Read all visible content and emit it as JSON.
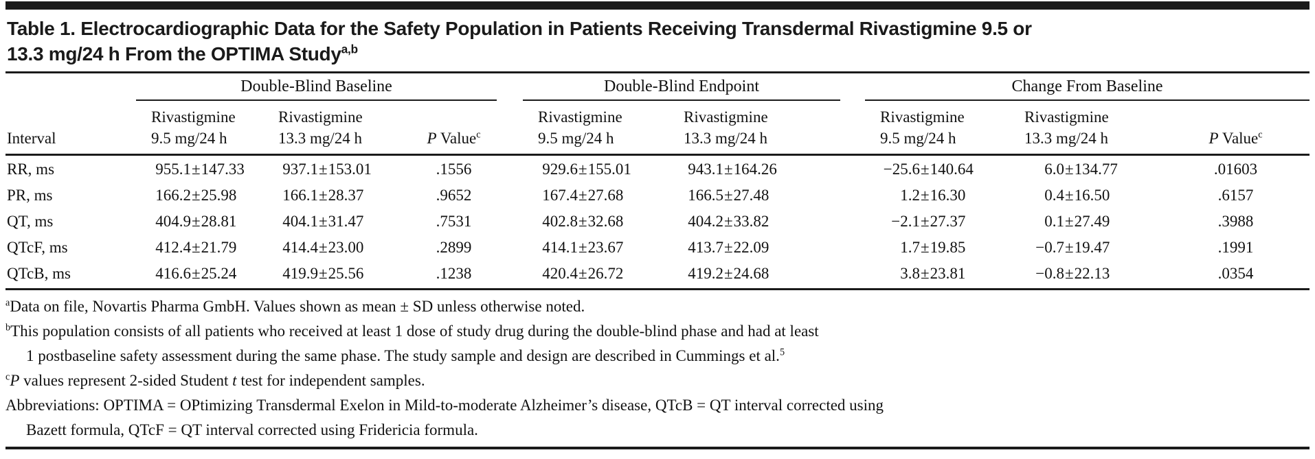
{
  "title": {
    "line1": "Table 1. Electrocardiographic Data for the Safety Population in Patients Receiving Transdermal Rivastigmine 9.5 or",
    "line2": "13.3 mg/24 h From the OPTIMA Study",
    "superscript": "a,b"
  },
  "table": {
    "interval_header": "Interval",
    "groups": {
      "baseline": {
        "label": "Double-Blind Baseline"
      },
      "endpoint": {
        "label": "Double-Blind Endpoint"
      },
      "change": {
        "label": "Change From Baseline"
      }
    },
    "col_headers": {
      "riva_line1": "Rivastigmine",
      "dose_9_5": "9.5 mg/24 h",
      "dose_13_3": "13.3 mg/24 h",
      "p_italic": "P",
      "p_rest": " Value",
      "p_superscript": "c"
    },
    "rows": [
      {
        "interval": "RR, ms",
        "values": [
          "955.1±147.33",
          "937.1±153.01",
          ".1556",
          "929.6±155.01",
          "943.1±164.26",
          "−25.6±140.64",
          "6.0±134.77",
          ".01603"
        ]
      },
      {
        "interval": "PR, ms",
        "values": [
          "166.2±25.98",
          "166.1±28.37",
          ".9652",
          "167.4±27.68",
          "166.5±27.48",
          "1.2±16.30",
          "0.4±16.50",
          ".6157"
        ]
      },
      {
        "interval": "QT, ms",
        "values": [
          "404.9±28.81",
          "404.1±31.47",
          ".7531",
          "402.8±32.68",
          "404.2±33.82",
          "−2.1±27.37",
          "0.1±27.49",
          ".3988"
        ]
      },
      {
        "interval": "QTcF, ms",
        "values": [
          "412.4±21.79",
          "414.4±23.00",
          ".2899",
          "414.1±23.67",
          "413.7±22.09",
          "1.7±19.85",
          "−0.7±19.47",
          ".1991"
        ]
      },
      {
        "interval": "QTcB, ms",
        "values": [
          "416.6±25.24",
          "419.9±25.56",
          ".1238",
          "420.4±26.72",
          "419.2±24.68",
          "3.8±23.81",
          "−0.8±22.13",
          ".0354"
        ]
      }
    ]
  },
  "footnotes": [
    {
      "segments": [
        {
          "sup": "a"
        },
        {
          "text": "Data on file, Novartis Pharma GmbH. Values shown as mean ± SD unless otherwise noted."
        }
      ]
    },
    {
      "segments": [
        {
          "sup": "b"
        },
        {
          "text": "This population consists of all patients who received at least 1 dose of study drug during the double-blind phase and had at least"
        },
        {
          "br": true
        },
        {
          "text": "1 postbaseline safety assessment during the same phase. The study sample and design are described in Cummings et al."
        },
        {
          "sup": "5"
        }
      ]
    },
    {
      "segments": [
        {
          "sup": "c"
        },
        {
          "text": "P",
          "italic": true
        },
        {
          "text": " values represent 2-sided Student "
        },
        {
          "text": "t",
          "italic": true
        },
        {
          "text": " test for independent samples."
        }
      ]
    },
    {
      "segments": [
        {
          "text": "Abbreviations: OPTIMA = OPtimizing Transdermal Exelon in Mild-to-moderate Alzheimer’s disease, QTcB = QT interval corrected using"
        },
        {
          "br": true
        },
        {
          "text": "Bazett formula, QTcF = QT interval corrected using Fridericia formula."
        }
      ]
    }
  ]
}
